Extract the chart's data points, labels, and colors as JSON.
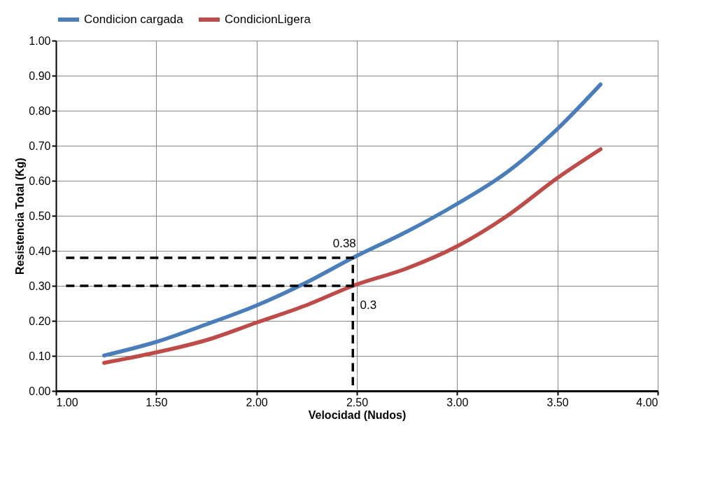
{
  "chart_data": {
    "type": "line",
    "xlabel": "Velocidad (Nudos)",
    "ylabel": "Resistencia Total (Kg)",
    "xlim": [
      1.0,
      4.0
    ],
    "xticks": [
      {
        "value": 1,
        "label": "1.00"
      },
      {
        "value": 1.5,
        "label": "1.50"
      },
      {
        "value": 2,
        "label": "2.00"
      },
      {
        "value": 2.5,
        "label": "2.50"
      },
      {
        "value": 3,
        "label": "3.00"
      },
      {
        "value": 3.5,
        "label": "3.50"
      },
      {
        "value": 4,
        "label": "4.00"
      }
    ],
    "ylim": [
      0,
      1.0
    ],
    "yticks": [
      {
        "value": 0,
        "label": "0.00"
      },
      {
        "value": 0.1,
        "label": "0.10"
      },
      {
        "value": 0.2,
        "label": "0.20"
      },
      {
        "value": 0.3,
        "label": "0.30"
      },
      {
        "value": 0.4,
        "label": "0.40"
      },
      {
        "value": 0.5,
        "label": "0.50"
      },
      {
        "value": 0.6,
        "label": "0.60"
      },
      {
        "value": 0.7,
        "label": "0.70"
      },
      {
        "value": 0.8,
        "label": "0.80"
      },
      {
        "value": 0.9,
        "label": "0.90"
      },
      {
        "value": 1.0,
        "label": "1.00"
      }
    ],
    "series": [
      {
        "name": "Condicion cargada",
        "color": "#4a7ebb",
        "x": [
          1.24,
          1.5,
          1.75,
          2.0,
          2.25,
          2.48,
          2.75,
          3.0,
          3.25,
          3.5,
          3.715
        ],
        "values": [
          0.101,
          0.14,
          0.19,
          0.244,
          0.31,
          0.38,
          0.455,
          0.534,
          0.625,
          0.748,
          0.875
        ]
      },
      {
        "name": "CondicionLigera",
        "color": "#be4b48",
        "x": [
          1.24,
          1.5,
          1.75,
          2.0,
          2.25,
          2.48,
          2.75,
          3.0,
          3.25,
          3.5,
          3.715
        ],
        "values": [
          0.08,
          0.11,
          0.145,
          0.195,
          0.245,
          0.3,
          0.35,
          0.413,
          0.5,
          0.608,
          0.69
        ]
      },
      {
        "color": "#000000",
        "line_style": "dashed",
        "x": [
          1.05,
          2.48,
          2.48
        ],
        "values": [
          0.38,
          0.38,
          0
        ]
      },
      {
        "color": "#000000",
        "line_style": "dashed",
        "x": [
          1.05,
          2.48
        ],
        "values": [
          0.3,
          0.3
        ]
      }
    ],
    "annotations": [
      {
        "text": "0.38",
        "x": 2.48,
        "y": 0.38
      },
      {
        "text": "0.3",
        "x": 2.48,
        "y": 0.3
      }
    ],
    "grid": true,
    "legend": "top",
    "marker": "none",
    "line_style": "solid"
  }
}
